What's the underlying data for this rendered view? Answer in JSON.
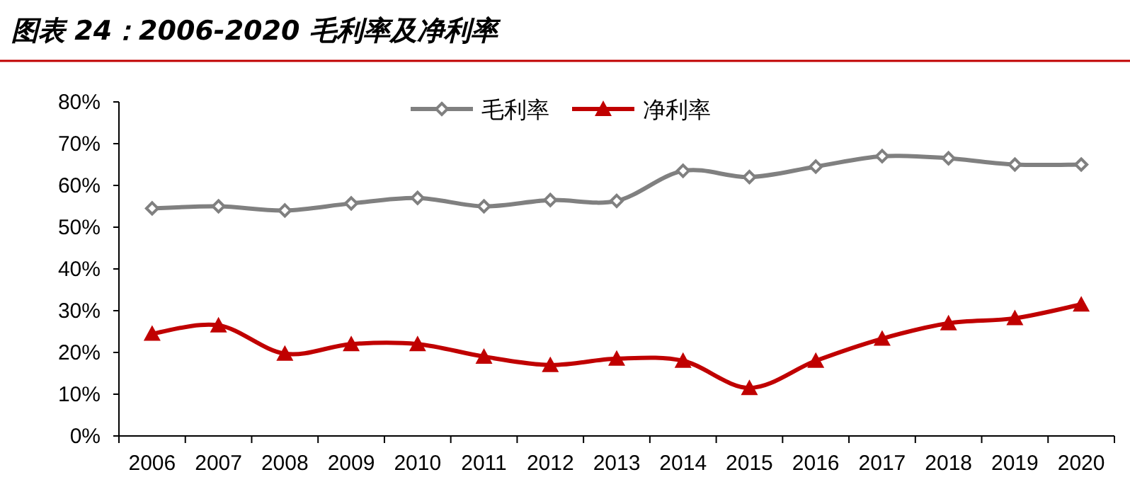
{
  "chart_data": {
    "type": "line",
    "title": "图表 24：2006-2020 毛利率及净利率",
    "categories": [
      "2006",
      "2007",
      "2008",
      "2009",
      "2010",
      "2011",
      "2012",
      "2013",
      "2014",
      "2015",
      "2016",
      "2017",
      "2018",
      "2019",
      "2020"
    ],
    "series": [
      {
        "name": "毛利率",
        "color": "#808080",
        "marker": "diamond",
        "values": [
          54.5,
          55,
          54,
          55.7,
          57,
          55,
          56.5,
          56.3,
          63.5,
          62,
          64.5,
          67,
          66.5,
          65,
          65
        ]
      },
      {
        "name": "净利率",
        "color": "#c00000",
        "marker": "triangle",
        "values": [
          24.5,
          26.5,
          19.7,
          22,
          22,
          19,
          17,
          18.5,
          18,
          11.5,
          18,
          23.3,
          27,
          28.2,
          31.5
        ]
      }
    ],
    "ylim": [
      0,
      80
    ],
    "yticks": [
      {
        "value": 0,
        "label": "0%"
      },
      {
        "value": 10,
        "label": "10%"
      },
      {
        "value": 20,
        "label": "20%"
      },
      {
        "value": 30,
        "label": "30%"
      },
      {
        "value": 40,
        "label": "40%"
      },
      {
        "value": 50,
        "label": "50%"
      },
      {
        "value": 60,
        "label": "60%"
      },
      {
        "value": 70,
        "label": "70%"
      },
      {
        "value": 80,
        "label": "80%"
      }
    ],
    "legend": "top",
    "grid": false,
    "line_style": "solid"
  }
}
